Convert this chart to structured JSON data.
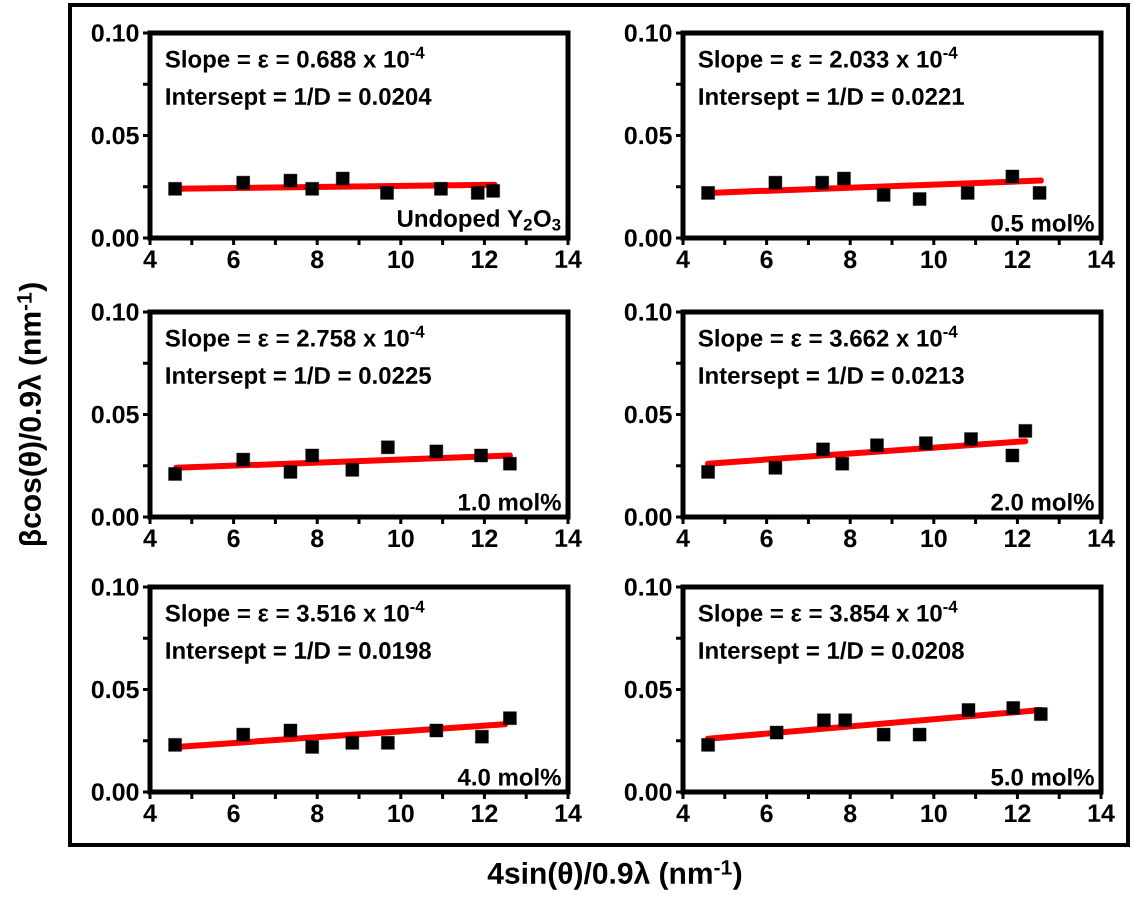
{
  "chart_data": [
    {
      "type": "scatter",
      "x": [
        4.6,
        6.23,
        7.36,
        7.88,
        8.61,
        9.67,
        10.96,
        11.84,
        12.21
      ],
      "marker": "square",
      "series": [
        {
          "color": "#000000",
          "values": [
            0.024,
            0.027,
            0.028,
            0.024,
            0.029,
            0.022,
            0.024,
            0.022,
            0.023
          ]
        },
        {
          "type": "line",
          "color": "#ff0000",
          "marker": "none",
          "x": [
            4.6,
            12.24
          ],
          "values": [
            0.024,
            0.026
          ]
        }
      ],
      "xlim": [
        4,
        14
      ],
      "ylim": [
        0,
        0.1
      ],
      "xticks": [
        4,
        {
          "value": 5,
          "label": null
        },
        6,
        {
          "value": 7,
          "label": null
        },
        8,
        {
          "value": 9,
          "label": null
        },
        10,
        {
          "value": 11,
          "label": null
        },
        12,
        {
          "value": 13,
          "label": null
        },
        14
      ],
      "yticks": [
        {
          "value": 0,
          "label": "0.00"
        },
        {
          "value": 0.025,
          "label": null
        },
        {
          "value": 0.05,
          "label": "0.05"
        },
        {
          "value": 0.075,
          "label": null
        },
        {
          "value": 0.1,
          "label": "0.10"
        }
      ],
      "annotations": [
        "Slope = ε = 0.688 x 10$^{-4}$",
        "Intersept = 1/D = 0.0204",
        "Undoped Y$_{2}$O$_{3}$"
      ]
    },
    {
      "type": "scatter",
      "x": [
        4.6,
        6.21,
        7.33,
        7.85,
        8.8,
        9.66,
        10.81,
        11.88,
        12.53
      ],
      "marker": "square",
      "series": [
        {
          "color": "#000000",
          "values": [
            0.022,
            0.027,
            0.027,
            0.029,
            0.021,
            0.019,
            0.022,
            0.03,
            0.022
          ]
        },
        {
          "type": "line",
          "color": "#ff0000",
          "marker": "none",
          "x": [
            4.6,
            12.56
          ],
          "values": [
            0.022,
            0.028
          ]
        }
      ],
      "xlim": [
        4,
        14
      ],
      "ylim": [
        0,
        0.1
      ],
      "xticks": [
        4,
        {
          "value": 5,
          "label": null
        },
        6,
        {
          "value": 7,
          "label": null
        },
        8,
        {
          "value": 9,
          "label": null
        },
        10,
        {
          "value": 11,
          "label": null
        },
        12,
        {
          "value": 13,
          "label": null
        },
        14
      ],
      "yticks": [
        {
          "value": 0,
          "label": "0.00"
        },
        {
          "value": 0.025,
          "label": null
        },
        {
          "value": 0.05,
          "label": "0.05"
        },
        {
          "value": 0.075,
          "label": null
        },
        {
          "value": 0.1,
          "label": "0.10"
        }
      ],
      "annotations": [
        "Slope = ε = 2.033 x 10$^{-4}$",
        "Intersept = 1/D = 0.0221",
        "0.5 mol%"
      ]
    },
    {
      "type": "scatter",
      "x": [
        4.6,
        6.23,
        7.36,
        7.88,
        8.84,
        9.69,
        10.85,
        11.92,
        12.61
      ],
      "marker": "square",
      "ylabel": "βcos(θ)/0.9λ (nm$^{-1}$)",
      "series": [
        {
          "color": "#000000",
          "values": [
            0.021,
            0.028,
            0.022,
            0.03,
            0.023,
            0.034,
            0.032,
            0.03,
            0.026
          ]
        },
        {
          "type": "line",
          "color": "#ff0000",
          "marker": "none",
          "x": [
            4.63,
            12.61
          ],
          "values": [
            0.024,
            0.03
          ]
        }
      ],
      "xlim": [
        4,
        14
      ],
      "ylim": [
        0,
        0.1
      ],
      "xticks": [
        4,
        {
          "value": 5,
          "label": null
        },
        6,
        {
          "value": 7,
          "label": null
        },
        8,
        {
          "value": 9,
          "label": null
        },
        10,
        {
          "value": 11,
          "label": null
        },
        12,
        {
          "value": 13,
          "label": null
        },
        14
      ],
      "yticks": [
        {
          "value": 0,
          "label": "0.00"
        },
        {
          "value": 0.025,
          "label": null
        },
        {
          "value": 0.05,
          "label": "0.05"
        },
        {
          "value": 0.075,
          "label": null
        },
        {
          "value": 0.1,
          "label": "0.10"
        }
      ],
      "annotations": [
        "Slope = ε = 2.758 x 10$^{-4}$",
        "Intersept = 1/D = 0.0225",
        "1.0 mol%"
      ]
    },
    {
      "type": "scatter",
      "x": [
        4.6,
        6.21,
        7.35,
        7.81,
        8.64,
        9.81,
        10.89,
        11.88,
        12.19
      ],
      "marker": "square",
      "series": [
        {
          "color": "#000000",
          "values": [
            0.022,
            0.024,
            0.033,
            0.026,
            0.035,
            0.036,
            0.038,
            0.03,
            0.042
          ]
        },
        {
          "type": "line",
          "color": "#ff0000",
          "marker": "none",
          "x": [
            4.6,
            12.19
          ],
          "values": [
            0.026,
            0.037
          ]
        }
      ],
      "xlim": [
        4,
        14
      ],
      "ylim": [
        0,
        0.1
      ],
      "xticks": [
        4,
        {
          "value": 5,
          "label": null
        },
        6,
        {
          "value": 7,
          "label": null
        },
        8,
        {
          "value": 9,
          "label": null
        },
        10,
        {
          "value": 11,
          "label": null
        },
        12,
        {
          "value": 13,
          "label": null
        },
        14
      ],
      "yticks": [
        {
          "value": 0,
          "label": "0.00"
        },
        {
          "value": 0.025,
          "label": null
        },
        {
          "value": 0.05,
          "label": "0.05"
        },
        {
          "value": 0.075,
          "label": null
        },
        {
          "value": 0.1,
          "label": "0.10"
        }
      ],
      "annotations": [
        "Slope = ε = 3.662 x 10$^{-4}$",
        "Intersept = 1/D = 0.0213",
        "2.0 mol%"
      ]
    },
    {
      "type": "scatter",
      "x": [
        4.6,
        6.23,
        7.36,
        7.88,
        8.84,
        9.69,
        10.85,
        11.94,
        12.61
      ],
      "marker": "square",
      "xlabel": "4sin(θ)/0.9λ (nm$^{-1}$)",
      "series": [
        {
          "color": "#000000",
          "values": [
            0.023,
            0.028,
            0.03,
            0.022,
            0.024,
            0.024,
            0.03,
            0.027,
            0.036
          ]
        },
        {
          "type": "line",
          "color": "#ff0000",
          "marker": "none",
          "x": [
            4.63,
            12.49
          ],
          "values": [
            0.022,
            0.033
          ]
        }
      ],
      "xlim": [
        4,
        14
      ],
      "ylim": [
        0,
        0.1
      ],
      "xticks": [
        4,
        {
          "value": 5,
          "label": null
        },
        6,
        {
          "value": 7,
          "label": null
        },
        8,
        {
          "value": 9,
          "label": null
        },
        10,
        {
          "value": 11,
          "label": null
        },
        12,
        {
          "value": 13,
          "label": null
        },
        14
      ],
      "yticks": [
        {
          "value": 0,
          "label": "0.00"
        },
        {
          "value": 0.025,
          "label": null
        },
        {
          "value": 0.05,
          "label": "0.05"
        },
        {
          "value": 0.075,
          "label": null
        },
        {
          "value": 0.1,
          "label": "0.10"
        }
      ],
      "annotations": [
        "Slope = ε = 3.516 x 10$^{-4}$",
        "Intersept = 1/D = 0.0198",
        "4.0 mol%"
      ]
    },
    {
      "type": "scatter",
      "x": [
        4.6,
        6.24,
        7.37,
        7.88,
        8.8,
        9.66,
        10.83,
        11.9,
        12.56
      ],
      "marker": "square",
      "series": [
        {
          "color": "#000000",
          "values": [
            0.023,
            0.029,
            0.035,
            0.035,
            0.028,
            0.028,
            0.04,
            0.041,
            0.038
          ]
        },
        {
          "type": "line",
          "color": "#ff0000",
          "marker": "none",
          "x": [
            4.6,
            12.56
          ],
          "values": [
            0.026,
            0.04
          ]
        }
      ],
      "xlim": [
        4,
        14
      ],
      "ylim": [
        0,
        0.1
      ],
      "xticks": [
        4,
        {
          "value": 5,
          "label": null
        },
        6,
        {
          "value": 7,
          "label": null
        },
        8,
        {
          "value": 9,
          "label": null
        },
        10,
        {
          "value": 11,
          "label": null
        },
        12,
        {
          "value": 13,
          "label": null
        },
        14
      ],
      "yticks": [
        {
          "value": 0,
          "label": "0.00"
        },
        {
          "value": 0.025,
          "label": null
        },
        {
          "value": 0.05,
          "label": "0.05"
        },
        {
          "value": 0.075,
          "label": null
        },
        {
          "value": 0.1,
          "label": "0.10"
        }
      ],
      "annotations": [
        "Slope = ε = 3.854 x 10$^{-4}$",
        "Intersept = 1/D = 0.0208",
        "5.0 mol%"
      ]
    }
  ]
}
